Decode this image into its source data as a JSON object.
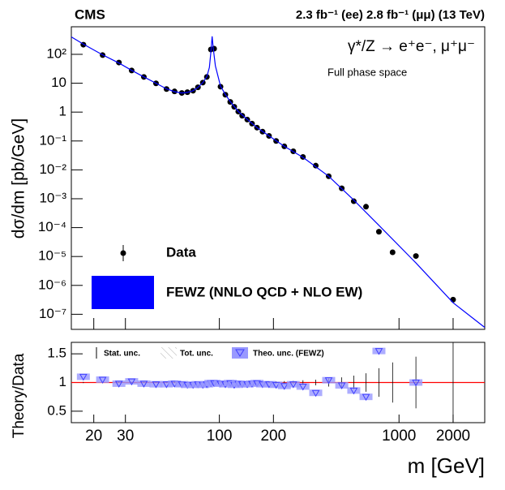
{
  "header": {
    "experiment": "CMS",
    "luminosity": "2.3 fb⁻¹ (ee) 2.8 fb⁻¹ (μμ) (13 TeV)"
  },
  "chart_data": [
    {
      "type": "line",
      "ylabel": "dσ/dm [pb/GeV]",
      "annotations": [
        "γ*/Z → e⁺e⁻, μ⁺μ⁻",
        "Full phase space"
      ],
      "xlog": true,
      "ylog": true,
      "legend": "bottom-left",
      "xlim": [
        15,
        3000
      ],
      "ylim": [
        3e-08,
        900
      ],
      "yticks": [
        {
          "value": 1e-07,
          "label": "10⁻⁷"
        },
        {
          "value": 1e-06,
          "label": "10⁻⁶"
        },
        {
          "value": 1e-05,
          "label": "10⁻⁵"
        },
        {
          "value": 0.0001,
          "label": "10⁻⁴"
        },
        {
          "value": 0.001,
          "label": "10⁻³"
        },
        {
          "value": 0.01,
          "label": "10⁻²"
        },
        {
          "value": 0.1,
          "label": "10⁻¹"
        },
        1,
        10,
        {
          "value": 100,
          "label": "10²"
        }
      ],
      "series": [
        {
          "name": "Data",
          "color": "#000000",
          "mark": "circle",
          "x": [
            17.5,
            22.4,
            27.6,
            32.5,
            38,
            44.4,
            50.8,
            56.3,
            61.8,
            66.4,
            71.4,
            76,
            80.9,
            85.2,
            89.7,
            93.5,
            101.5,
            108,
            115,
            121,
            127.5,
            134,
            143,
            152,
            162,
            174,
            189,
            207,
            230,
            258,
            292,
            344,
            406,
            480,
            560,
            655,
            773,
            921,
            1242,
            2000
          ],
          "values": [
            216,
            94,
            52,
            27.6,
            16.5,
            9.9,
            6.3,
            5.2,
            4.6,
            4.9,
            5.5,
            7.2,
            10.5,
            16.5,
            147,
            157,
            7.6,
            4.0,
            2.25,
            1.53,
            1.04,
            0.75,
            0.55,
            0.4,
            0.29,
            0.21,
            0.15,
            0.1,
            0.065,
            0.044,
            0.028,
            0.014,
            0.006,
            0.0023,
            0.00082,
            0.00053,
            7.2e-05,
            1.4e-05,
            1.04e-05,
            3.2e-07
          ]
        },
        {
          "name": "FEWZ (NNLO QCD + NLO EW)",
          "color": "#0000ff",
          "mark": "line",
          "x": [
            15,
            17.5,
            22.4,
            27.6,
            32.5,
            38,
            44.4,
            50.8,
            56.3,
            61.8,
            66.4,
            71.4,
            76,
            80.9,
            85.2,
            88,
            90,
            91.2,
            92.5,
            95,
            101.5,
            108,
            115,
            127.5,
            143,
            162,
            189,
            230,
            292,
            406,
            560,
            773,
            1242,
            2000,
            3000
          ],
          "values": [
            400,
            225,
            96,
            50,
            28,
            16.5,
            10,
            6.4,
            5.1,
            4.6,
            4.8,
            5.5,
            7.2,
            10.5,
            17,
            35,
            150,
            420,
            160,
            40,
            8,
            4.1,
            2.3,
            1.05,
            0.56,
            0.29,
            0.15,
            0.065,
            0.027,
            0.006,
            0.0009,
            0.00012,
            6e-06,
            2.5e-07,
            3.5e-08
          ]
        }
      ]
    },
    {
      "type": "scatter",
      "ylabel": "Theory/Data",
      "xlabel": "m [GeV]",
      "xlog": true,
      "xlim": [
        15,
        3000
      ],
      "ylim": [
        0.3,
        1.7
      ],
      "xticks": [
        20,
        30,
        100,
        200,
        1000,
        2000
      ],
      "yticks": [
        0.5,
        1,
        1.5
      ],
      "reference_line": 1,
      "reference_color": "#ff0000",
      "legend_labels": {
        "stat": "Stat. unc.",
        "total": "Tot. unc.",
        "theory": "Theo. unc. (FEWZ)"
      },
      "series": [
        {
          "name": "Theo. unc. (FEWZ)",
          "color": "#4040ff",
          "x": [
            17.5,
            22.4,
            27.6,
            32.5,
            38,
            44.4,
            50.8,
            56.3,
            61.8,
            66.4,
            71.4,
            76,
            80.9,
            85.2,
            89.7,
            93.5,
            101.5,
            108,
            115,
            121,
            127.5,
            134,
            143,
            152,
            162,
            174,
            189,
            207,
            230,
            258,
            292,
            344,
            406,
            480,
            560,
            655,
            773,
            921,
            1242,
            2000
          ],
          "values": [
            1.1,
            1.05,
            0.98,
            1.02,
            0.98,
            0.97,
            0.97,
            0.98,
            0.97,
            0.96,
            0.96,
            0.97,
            0.96,
            0.97,
            0.99,
            0.99,
            0.98,
            0.97,
            0.99,
            0.96,
            0.98,
            0.97,
            0.97,
            0.98,
            0.99,
            0.97,
            0.97,
            0.96,
            0.94,
            0.97,
            0.93,
            0.82,
            1.04,
            0.95,
            0.86,
            0.75,
            1.55,
            null,
            1.0,
            null
          ],
          "stat_errors": [
            0.01,
            0.01,
            0.01,
            0.01,
            0.01,
            0.01,
            0.01,
            0.01,
            0.01,
            0.01,
            0.01,
            0.01,
            0.01,
            0.01,
            0.01,
            0.01,
            0.01,
            0.01,
            0.01,
            0.01,
            0.01,
            0.01,
            0.01,
            0.01,
            0.01,
            0.01,
            0.015,
            0.02,
            0.025,
            0.03,
            0.04,
            0.05,
            0.07,
            0.09,
            0.12,
            0.16,
            0.25,
            0.35,
            0.45,
            1.0
          ]
        }
      ]
    }
  ]
}
